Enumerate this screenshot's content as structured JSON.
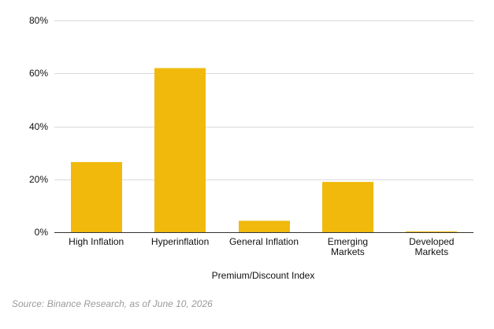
{
  "chart_data": {
    "type": "bar",
    "categories": [
      "High Inflation",
      "Hyperinflation",
      "General Inflation",
      "Emerging Markets",
      "Developed Markets"
    ],
    "category_label_lines": [
      [
        "High Inflation"
      ],
      [
        "Hyperinflation"
      ],
      [
        "General Inflation"
      ],
      [
        "Emerging",
        "Markets"
      ],
      [
        "Developed",
        "Markets"
      ]
    ],
    "values": [
      26.5,
      62,
      4.3,
      19,
      0.3
    ],
    "xlabel": "Premium/Discount Index",
    "ylabel": "",
    "ylim": [
      0,
      80
    ],
    "yticks": [
      0,
      20,
      40,
      60,
      80
    ],
    "ytick_labels": [
      "0%",
      "20%",
      "40%",
      "60%",
      "80%"
    ],
    "bar_color": "#f0b90b",
    "grid": true,
    "legend": "none"
  },
  "source_note": "Source: Binance Research, as of June 10, 2026"
}
